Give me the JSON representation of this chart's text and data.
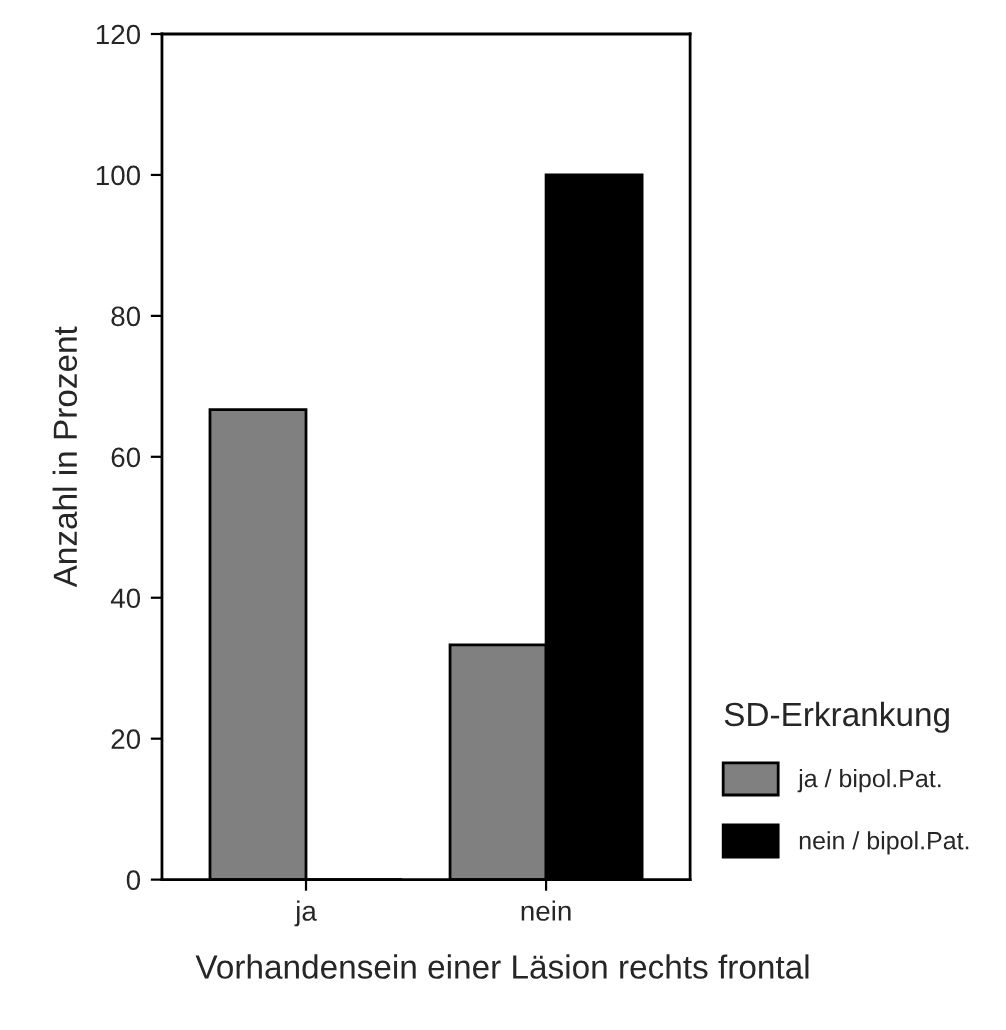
{
  "chart_data": {
    "type": "bar",
    "xlabel": "Vorhandensein einer Läsion rechts frontal",
    "ylabel": "Anzahl in Prozent",
    "legend_title": "SD-Erkrankung",
    "categories": [
      "ja",
      "nein"
    ],
    "series": [
      {
        "name": "ja / bipol.Pat.",
        "color": "#808080",
        "values": [
          66.7,
          33.3
        ]
      },
      {
        "name": "nein / bipol.Pat.",
        "color": "#000000",
        "values": [
          0,
          100
        ]
      }
    ],
    "ylim": [
      0,
      120
    ],
    "yticks": [
      0,
      20,
      40,
      60,
      80,
      100,
      120
    ],
    "grid": false,
    "legend": "bottom right"
  }
}
